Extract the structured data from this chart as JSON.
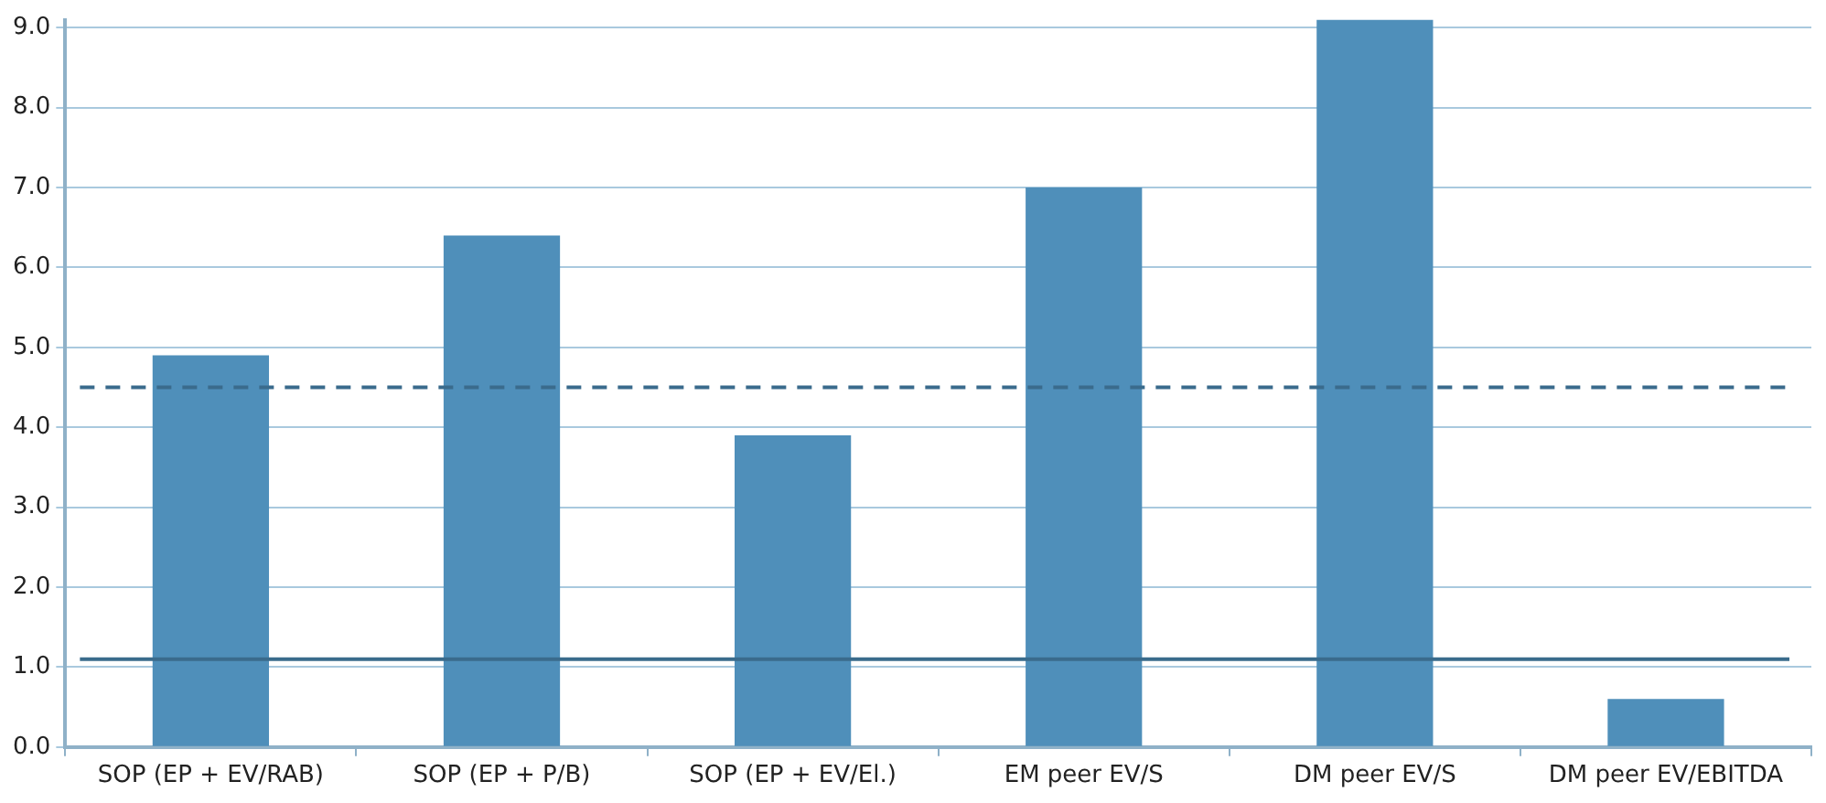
{
  "chart_data": {
    "type": "bar",
    "categories": [
      "SOP (EP + EV/RAB)",
      "SOP (EP + P/B)",
      "SOP (EP + EV/El.)",
      "EM peer EV/S",
      "DM peer EV/S",
      "DM peer EV/EBITDA"
    ],
    "values": [
      4.9,
      6.4,
      3.9,
      7.0,
      9.1,
      0.6
    ],
    "color": "#4f8fba",
    "ylim": [
      0,
      9.1
    ],
    "yticks": [
      {
        "value": 0,
        "label": "0.0"
      },
      {
        "value": 1,
        "label": "1.0"
      },
      {
        "value": 2,
        "label": "2.0"
      },
      {
        "value": 3,
        "label": "3.0"
      },
      {
        "value": 4,
        "label": "4.0"
      },
      {
        "value": 5,
        "label": "5.0"
      },
      {
        "value": 6,
        "label": "6.0"
      },
      {
        "value": 7,
        "label": "7.0"
      },
      {
        "value": 8,
        "label": "8.0"
      },
      {
        "value": 9,
        "label": "9.0"
      }
    ],
    "grid": "y",
    "ref_lines": [
      {
        "axis": "y",
        "value": 4.5,
        "color": "#3a6b8c",
        "line_style": "dashed"
      },
      {
        "axis": "y",
        "value": 1.1,
        "color": "#3a6b8c",
        "line_style": "solid"
      }
    ]
  }
}
